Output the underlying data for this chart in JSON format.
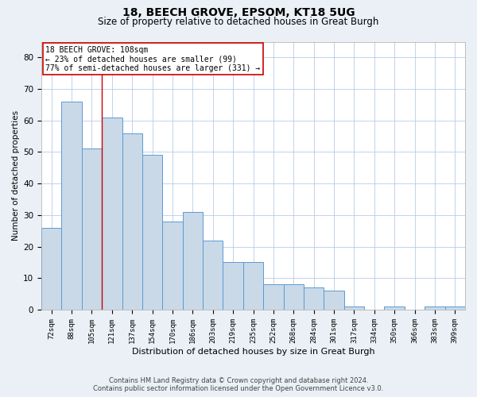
{
  "title1": "18, BEECH GROVE, EPSOM, KT18 5UG",
  "title2": "Size of property relative to detached houses in Great Burgh",
  "xlabel": "Distribution of detached houses by size in Great Burgh",
  "ylabel": "Number of detached properties",
  "categories": [
    "72sqm",
    "88sqm",
    "105sqm",
    "121sqm",
    "137sqm",
    "154sqm",
    "170sqm",
    "186sqm",
    "203sqm",
    "219sqm",
    "235sqm",
    "252sqm",
    "268sqm",
    "284sqm",
    "301sqm",
    "317sqm",
    "334sqm",
    "350sqm",
    "366sqm",
    "383sqm",
    "399sqm"
  ],
  "values": [
    26,
    66,
    51,
    61,
    56,
    49,
    28,
    31,
    22,
    15,
    15,
    8,
    8,
    7,
    6,
    1,
    0,
    1,
    0,
    1,
    1
  ],
  "bar_color": "#c9d9e8",
  "bar_edge_color": "#5b9bd5",
  "property_label": "18 BEECH GROVE: 108sqm",
  "annotation_line1": "← 23% of detached houses are smaller (99)",
  "annotation_line2": "77% of semi-detached houses are larger (331) →",
  "vline_color": "#cc0000",
  "vline_position": 2.5,
  "ylim": [
    0,
    85
  ],
  "yticks": [
    0,
    10,
    20,
    30,
    40,
    50,
    60,
    70,
    80
  ],
  "footnote1": "Contains HM Land Registry data © Crown copyright and database right 2024.",
  "footnote2": "Contains public sector information licensed under the Open Government Licence v3.0.",
  "bg_color": "#eaf0f6",
  "plot_bg_color": "#ffffff",
  "grid_color": "#b8cce4"
}
